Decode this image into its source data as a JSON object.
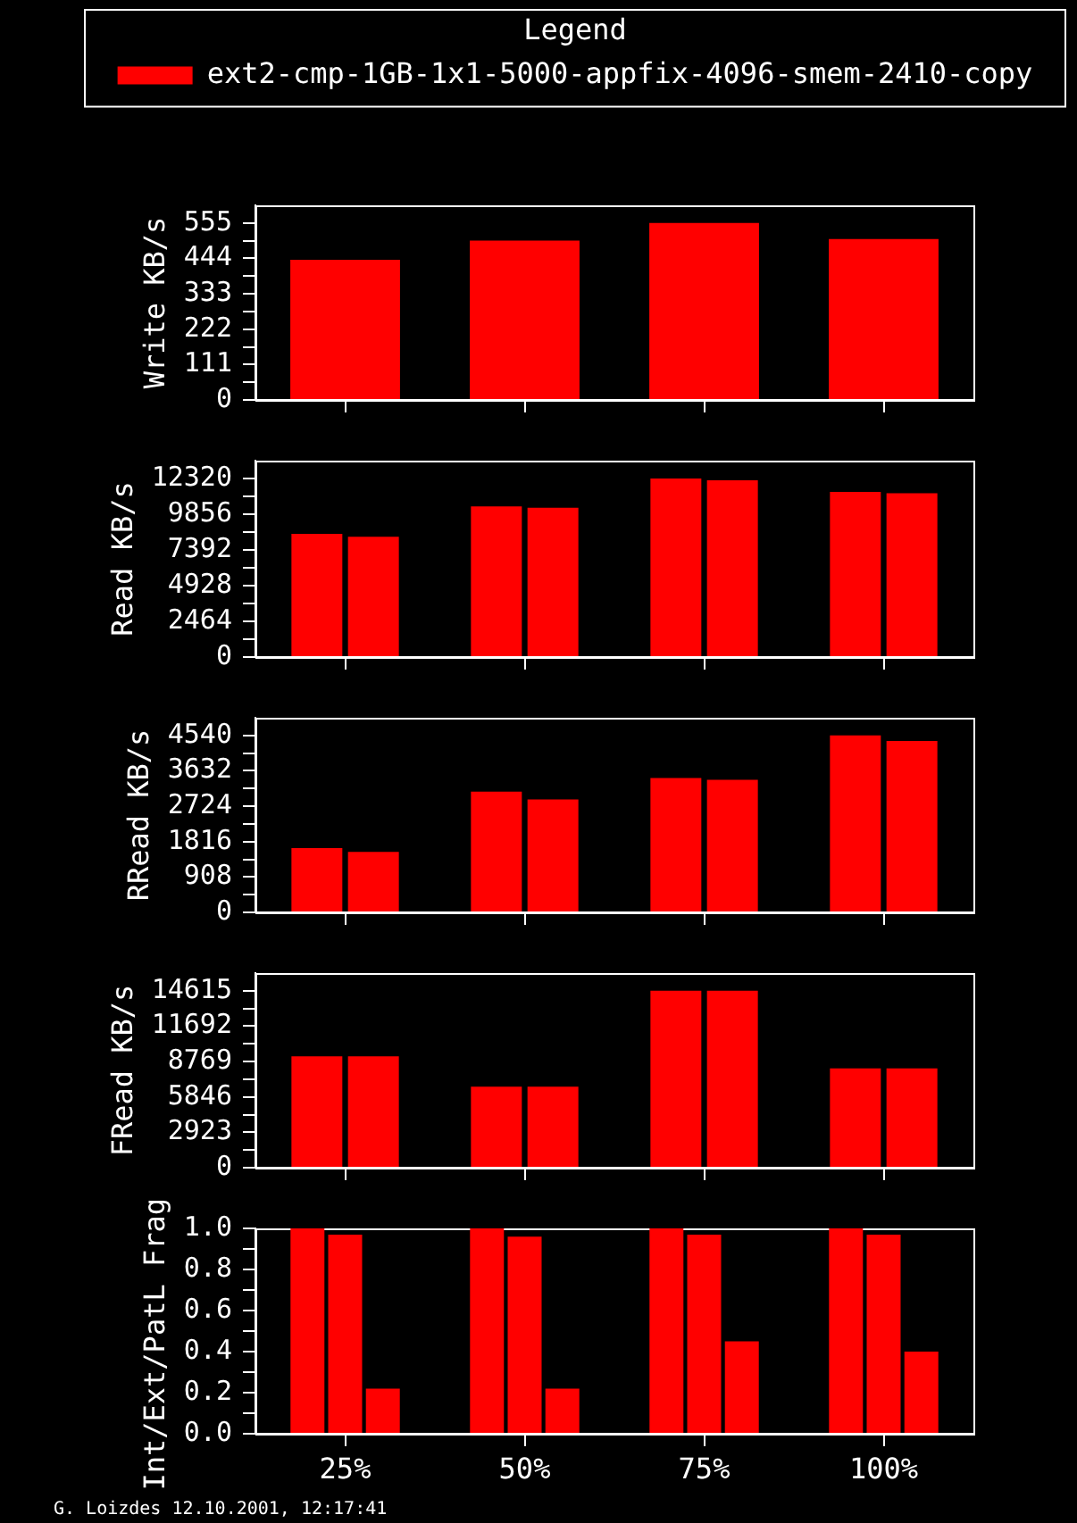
{
  "chart_data": [
    {
      "type": "bar",
      "categories": [
        null,
        null,
        null,
        null
      ],
      "ylabel": "Write KB/s",
      "legend": "top",
      "legend_title": "Legend",
      "tick_labels": "y",
      "ylim": [
        0,
        610.5
      ],
      "yticks": [
        0,
        {
          "value": 55.5,
          "label": null
        },
        111,
        {
          "value": 166.5,
          "label": null
        },
        222,
        {
          "value": 277.5,
          "label": null
        },
        333,
        {
          "value": 388.5,
          "label": null
        },
        444,
        {
          "value": 499.5,
          "label": null
        },
        555
      ],
      "series": [
        {
          "name": "ext2-cmp-1GB-1x1-5000-appfix-4096-smem-2410-copy",
          "color": "#ff0000",
          "values": [
            440,
            500,
            555,
            505
          ]
        }
      ]
    },
    {
      "type": "bar",
      "categories": [
        null,
        null,
        null,
        null
      ],
      "ylabel": "Read KB/s",
      "tick_labels": "y",
      "ylim": [
        0,
        13552
      ],
      "yticks": [
        0,
        {
          "value": 1232,
          "label": null
        },
        2464,
        {
          "value": 3696,
          "label": null
        },
        4928,
        {
          "value": 6160,
          "label": null
        },
        7392,
        {
          "value": 8624,
          "label": null
        },
        9856,
        {
          "value": 11088,
          "label": null
        },
        12320
      ],
      "series": [
        {
          "color": "#ff0000",
          "values": [
            8500,
            10400,
            12320,
            11400
          ]
        },
        {
          "color": "#ff0000",
          "values": [
            8300,
            10300,
            12200,
            11300
          ]
        }
      ]
    },
    {
      "type": "bar",
      "categories": [
        null,
        null,
        null,
        null
      ],
      "ylabel": "RRead KB/s",
      "tick_labels": "y",
      "ylim": [
        0,
        4994
      ],
      "yticks": [
        0,
        {
          "value": 454,
          "label": null
        },
        908,
        {
          "value": 1362,
          "label": null
        },
        1816,
        {
          "value": 2270,
          "label": null
        },
        2724,
        {
          "value": 3178,
          "label": null
        },
        3632,
        {
          "value": 4086,
          "label": null
        },
        4540
      ],
      "series": [
        {
          "color": "#ff0000",
          "values": [
            1650,
            3100,
            3450,
            4540
          ]
        },
        {
          "color": "#ff0000",
          "values": [
            1550,
            2900,
            3400,
            4400
          ]
        }
      ]
    },
    {
      "type": "bar",
      "categories": [
        null,
        null,
        null,
        null
      ],
      "ylabel": "FRead KB/s",
      "tick_labels": "y",
      "ylim": [
        0,
        16076.5
      ],
      "yticks": [
        0,
        {
          "value": 1461.5,
          "label": null
        },
        2923,
        {
          "value": 4384.5,
          "label": null
        },
        5846,
        {
          "value": 7307.5,
          "label": null
        },
        8769,
        {
          "value": 10230.5,
          "label": null
        },
        11692,
        {
          "value": 13153.5,
          "label": null
        },
        14615
      ],
      "series": [
        {
          "color": "#ff0000",
          "values": [
            9200,
            6700,
            14615,
            8200
          ]
        },
        {
          "color": "#ff0000",
          "values": [
            9200,
            6700,
            14615,
            8200
          ]
        }
      ]
    },
    {
      "type": "bar",
      "categories": [
        "25%",
        "50%",
        "75%",
        "100%"
      ],
      "ylabel": "Int/Ext/PatL Frag",
      "ylim": [
        0,
        1
      ],
      "yticks": [
        {
          "value": 0,
          "label": "0.0"
        },
        {
          "value": 0.1,
          "label": null
        },
        0.2,
        {
          "value": 0.3,
          "label": null
        },
        0.4,
        {
          "value": 0.5,
          "label": null
        },
        0.6,
        {
          "value": 0.7,
          "label": null
        },
        0.8,
        {
          "value": 0.9,
          "label": null
        },
        {
          "value": 1,
          "label": "1.0"
        }
      ],
      "series": [
        {
          "color": "#ff0000",
          "values": [
            1,
            1,
            1,
            1
          ]
        },
        {
          "color": "#ff0000",
          "values": [
            0.97,
            0.96,
            0.97,
            0.97
          ]
        },
        {
          "color": "#ff0000",
          "values": [
            0.22,
            0.22,
            0.45,
            0.4
          ]
        }
      ],
      "annotations": [
        "G. Loizdes 12.10.2001, 12:17:41"
      ]
    }
  ]
}
